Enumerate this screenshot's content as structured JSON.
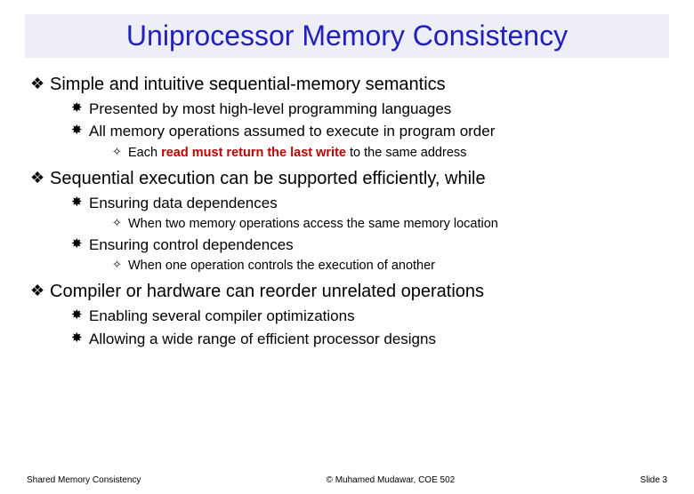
{
  "title": "Uniprocessor Memory Consistency",
  "bullets": {
    "b1": "Simple and intuitive sequential-memory semantics",
    "b1a": "Presented by most high-level programming languages",
    "b1b": "All memory operations assumed to execute in program order",
    "b1b1_pre": "Each ",
    "b1b1_red": "read must return the last write",
    "b1b1_post": " to the same address",
    "b2": "Sequential execution can be supported efficiently, while",
    "b2a": "Ensuring data dependences",
    "b2a1": "When two memory operations access the same memory location",
    "b2b": "Ensuring control dependences",
    "b2b1": "When one operation controls the execution of another",
    "b3": "Compiler or hardware can reorder unrelated operations",
    "b3a": "Enabling several compiler optimizations",
    "b3b": "Allowing a wide range of efficient processor designs"
  },
  "footer": {
    "left": "Shared Memory Consistency",
    "center": "© Muhamed Mudawar, COE 502",
    "right": "Slide 3"
  },
  "glyphs": {
    "diamond": "❖",
    "star": "✸",
    "small": "✧"
  },
  "colors": {
    "title": "#2020c0",
    "title_bg": "#eeeef8",
    "emphasis": "#c00000",
    "text": "#000000",
    "bg": "#ffffff"
  }
}
